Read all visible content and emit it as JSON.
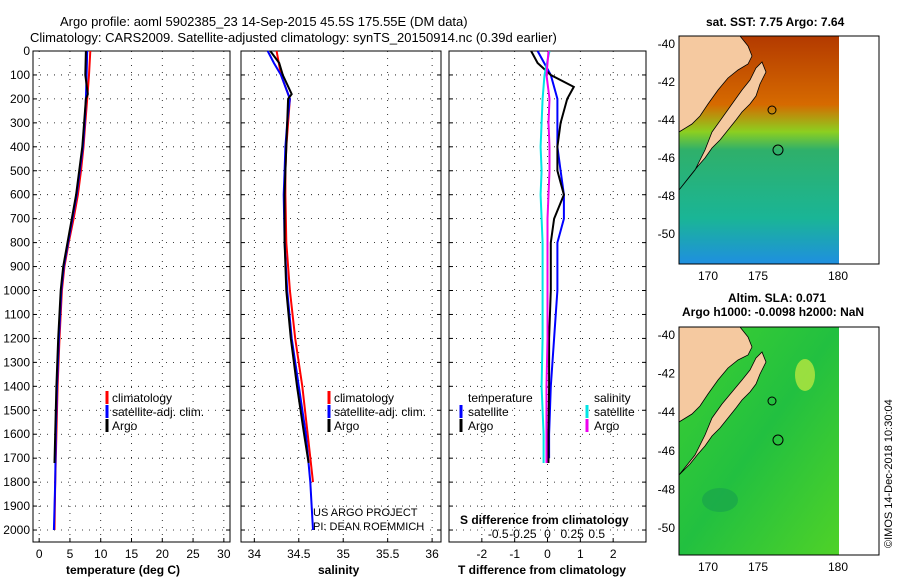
{
  "header": {
    "line1": "Argo profile: aoml 5902385_23 14-Sep-2015 45.5S 175.55E (DM data)",
    "line2": "Climatology: CARS2009. Satellite-adjusted climatology: synTS_20150914.nc (0.39d earlier)"
  },
  "colors": {
    "argo": "#000000",
    "climatology": "#ff0000",
    "satellite": "#0000ff",
    "sat_salinity": "#00e5e5",
    "argo_salinity_diff": "#ee00ee"
  },
  "chart_data": [
    {
      "type": "line",
      "title": "",
      "xlabel": "temperature (deg C)",
      "ylabel": "",
      "xlim": [
        -1,
        31
      ],
      "ylim": [
        2050,
        0
      ],
      "xticks": [
        "0",
        "5",
        "10",
        "15",
        "20",
        "25",
        "30"
      ],
      "yticks": [
        "0",
        "100",
        "200",
        "300",
        "400",
        "500",
        "600",
        "700",
        "800",
        "900",
        "1000",
        "1100",
        "1200",
        "1300",
        "1400",
        "1500",
        "1600",
        "1700",
        "1800",
        "1900",
        "2000"
      ],
      "legend": [
        "climatology",
        "satellite-adj. clim.",
        "Argo"
      ],
      "series": [
        {
          "name": "climatology",
          "color": "#ff0000",
          "depth": [
            0,
            100,
            200,
            300,
            400,
            500,
            600,
            700,
            800,
            900,
            1000,
            1200,
            1400,
            1600,
            1800,
            2000
          ],
          "values": [
            8.3,
            8.1,
            7.8,
            7.5,
            7.2,
            6.8,
            6.3,
            5.6,
            4.8,
            4.1,
            3.7,
            3.3,
            3.0,
            2.8,
            2.6,
            2.5
          ]
        },
        {
          "name": "satellite-adj. clim.",
          "color": "#0000ff",
          "depth": [
            0,
            100,
            200,
            300,
            400,
            500,
            600,
            700,
            800,
            900,
            1000,
            1200,
            1400,
            1600,
            1800,
            2000
          ],
          "values": [
            7.8,
            7.7,
            7.6,
            7.4,
            7.1,
            6.6,
            6.1,
            5.4,
            4.7,
            4.0,
            3.6,
            3.2,
            2.9,
            2.7,
            2.6,
            2.4
          ]
        },
        {
          "name": "Argo",
          "color": "#000000",
          "depth": [
            0,
            100,
            180,
            200,
            300,
            400,
            500,
            600,
            700,
            800,
            900,
            1000,
            1200,
            1400,
            1600,
            1720
          ],
          "values": [
            7.6,
            7.5,
            7.9,
            7.6,
            7.3,
            7.0,
            6.5,
            6.0,
            5.3,
            4.6,
            3.9,
            3.5,
            3.1,
            2.8,
            2.6,
            2.5
          ]
        }
      ]
    },
    {
      "type": "line",
      "title": "",
      "xlabel": "salinity",
      "xlim": [
        33.85,
        36.1
      ],
      "ylim": [
        2050,
        0
      ],
      "xticks": [
        "34",
        "34.5",
        "35",
        "35.5",
        "36"
      ],
      "legend": [
        "climatology",
        "satellite-adj. clim.",
        "Argo"
      ],
      "series": [
        {
          "name": "climatology",
          "color": "#ff0000",
          "depth": [
            0,
            100,
            200,
            300,
            400,
            500,
            600,
            800,
            1000,
            1200,
            1400,
            1600,
            1800
          ],
          "values": [
            34.25,
            34.3,
            34.4,
            34.38,
            34.36,
            34.35,
            34.35,
            34.36,
            34.4,
            34.46,
            34.54,
            34.6,
            34.66
          ]
        },
        {
          "name": "satellite-adj. clim.",
          "color": "#0000ff",
          "depth": [
            0,
            50,
            100,
            200,
            300,
            400,
            500,
            600,
            800,
            1000,
            1200,
            1400,
            1600,
            1800,
            2000
          ],
          "values": [
            34.15,
            34.22,
            34.3,
            34.4,
            34.37,
            34.35,
            34.34,
            34.33,
            34.34,
            34.37,
            34.42,
            34.5,
            34.58,
            34.63,
            34.66
          ]
        },
        {
          "name": "Argo",
          "color": "#000000",
          "depth": [
            0,
            50,
            100,
            180,
            200,
            300,
            400,
            500,
            600,
            800,
            1000,
            1200,
            1400,
            1600,
            1720
          ],
          "values": [
            34.18,
            34.28,
            34.32,
            34.42,
            34.38,
            34.37,
            34.36,
            34.35,
            34.34,
            34.34,
            34.36,
            34.41,
            34.48,
            34.56,
            34.61
          ]
        }
      ]
    },
    {
      "type": "line",
      "xlabel": "T difference from climatology",
      "xlabel2": "S difference from climatology",
      "xlim": [
        -3,
        3
      ],
      "s_ticks": [
        "-0.5",
        "-0.25",
        "0",
        "0.25",
        "0.5"
      ],
      "xticks": [
        "-2",
        "-1",
        "0",
        "1",
        "2"
      ],
      "legend_temperature": {
        "title": "temperature",
        "items": [
          "satellite",
          "Argo"
        ]
      },
      "legend_salinity": {
        "title": "salinity",
        "items": [
          "satellite",
          "Argo"
        ]
      },
      "series": [
        {
          "name": "T satellite",
          "color": "#0000ff",
          "depth": [
            0,
            100,
            200,
            300,
            400,
            500,
            600,
            700,
            800,
            900,
            1000,
            1200,
            1400,
            1600,
            1700
          ],
          "values": [
            -0.3,
            0.1,
            0.3,
            0.3,
            0.3,
            0.4,
            0.5,
            0.5,
            0.3,
            0.3,
            0.3,
            0.2,
            0.1,
            0.05,
            0.05
          ]
        },
        {
          "name": "T Argo",
          "color": "#000000",
          "depth": [
            0,
            50,
            100,
            150,
            200,
            300,
            400,
            500,
            600,
            700,
            800,
            900,
            1000,
            1200,
            1400,
            1600,
            1720
          ],
          "values": [
            -0.5,
            -0.3,
            0.1,
            0.8,
            0.6,
            0.4,
            0.3,
            0.3,
            0.5,
            0.2,
            0.1,
            0.1,
            0.1,
            0.05,
            0.05,
            0.03,
            0.03
          ]
        },
        {
          "name": "S satellite",
          "color": "#00e5e5",
          "depth": [
            0,
            100,
            200,
            300,
            400,
            500,
            600,
            700,
            800,
            1000,
            1200,
            1400,
            1600,
            1720
          ],
          "values": [
            0.02,
            -0.03,
            -0.05,
            -0.06,
            -0.07,
            -0.06,
            -0.07,
            -0.06,
            -0.05,
            -0.05,
            -0.05,
            -0.06,
            -0.04,
            -0.04
          ]
        },
        {
          "name": "S Argo",
          "color": "#ee00ee",
          "depth": [
            0,
            100,
            200,
            300,
            400,
            500,
            600,
            700,
            800,
            1000,
            1200,
            1400,
            1600,
            1720
          ],
          "values": [
            0.01,
            -0.01,
            0.02,
            0.01,
            0.02,
            0.02,
            0.01,
            0.0,
            0.0,
            0.0,
            0.0,
            -0.01,
            -0.01,
            -0.01
          ]
        }
      ]
    }
  ],
  "maps": {
    "sst": {
      "title": "sat. SST: 7.75 Argo: 7.64",
      "lat_ticks": [
        "-40",
        "-42",
        "-44",
        "-46",
        "-48",
        "-50"
      ],
      "lon_ticks": [
        "170",
        "175",
        "180"
      ]
    },
    "sla": {
      "title1": "Altim. SLA: 0.071",
      "title2": "Argo h1000: -0.0098 h2000: NaN",
      "lat_ticks": [
        "-40",
        "-42",
        "-44",
        "-46",
        "-48",
        "-50"
      ],
      "lon_ticks": [
        "170",
        "175",
        "180"
      ]
    }
  },
  "credits": {
    "project": "US ARGO PROJECT",
    "pi": "PI: DEAN ROEMMICH",
    "stamp": "©IMOS 14-Dec-2018 10:30:04"
  }
}
